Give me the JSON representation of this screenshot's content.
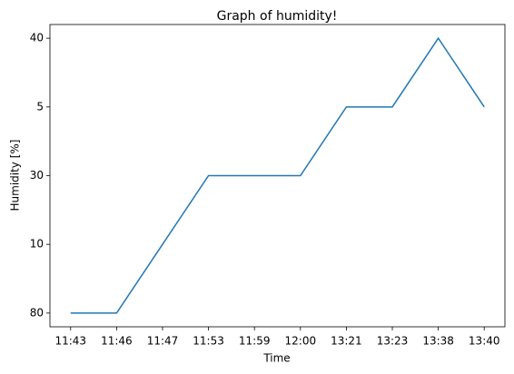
{
  "chart_data": {
    "type": "line",
    "title": "Graph of humidity!",
    "x_label": "Time",
    "y_label": "Humidity [%]",
    "categories": [
      "11:43",
      "11:46",
      "11:47",
      "11:53",
      "11:59",
      "12:00",
      "13:21",
      "13:23",
      "13:38",
      "13:40"
    ],
    "ycategories": [
      "80",
      "10",
      "30",
      "5",
      "40"
    ],
    "series": [
      {
        "name": "humidity",
        "color": "#1f77b4",
        "values": [
          "80",
          "80",
          "10",
          "30",
          "30",
          "30",
          "5",
          "5",
          "40",
          "5"
        ]
      }
    ]
  }
}
